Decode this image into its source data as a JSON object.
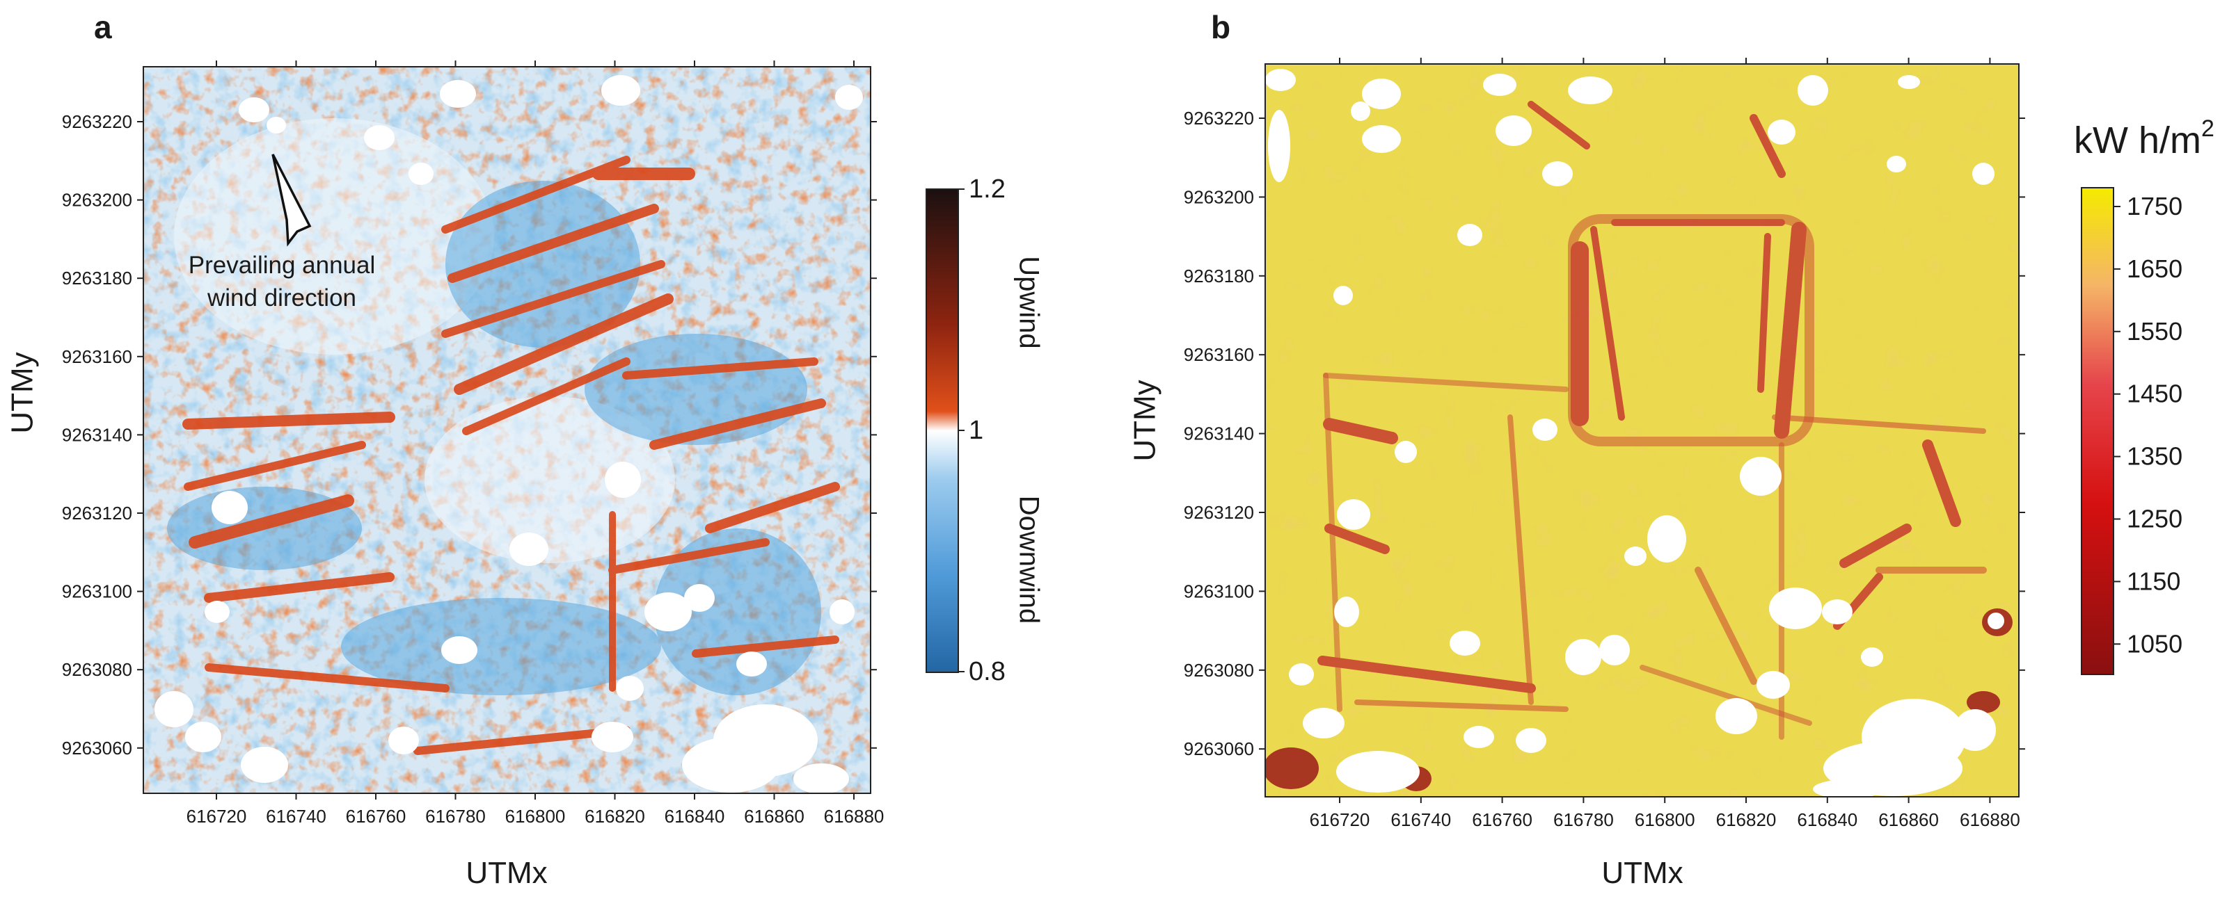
{
  "panel_a": {
    "label": "a",
    "x_ticks": [
      "616720",
      "616740",
      "616760",
      "616780",
      "616800",
      "616820",
      "616840",
      "616860",
      "616880"
    ],
    "y_ticks": [
      "9263220",
      "9263200",
      "9263180",
      "9263160",
      "9263140",
      "9263120",
      "9263100",
      "9263080",
      "9263060"
    ],
    "x_axis_label": "UTMx",
    "y_axis_label": "UTMy",
    "annotation_line1": "Prevailing annual",
    "annotation_line2": "wind direction",
    "colorbar": {
      "max_label": "1.2",
      "mid_label": "1",
      "min_label": "0.8",
      "upper_label": "Upwind",
      "lower_label": "Downwind",
      "colors": [
        "#1b1010",
        "#c13a14",
        "#ffffff",
        "#5aa7de",
        "#2466a4"
      ]
    }
  },
  "panel_b": {
    "label": "b",
    "x_ticks": [
      "616720",
      "616740",
      "616760",
      "616780",
      "616800",
      "616820",
      "616840",
      "616860",
      "616880"
    ],
    "y_ticks": [
      "9263220",
      "9263200",
      "9263180",
      "9263160",
      "9263140",
      "9263120",
      "9263100",
      "9263080",
      "9263060"
    ],
    "x_axis_label": "UTMx",
    "y_axis_label": "UTMy",
    "colorbar": {
      "unit_base": "kW h/m",
      "unit_sup": "2",
      "ticks": [
        "1750",
        "1650",
        "1550",
        "1450",
        "1350",
        "1250",
        "1150",
        "1050"
      ],
      "colors": [
        "#f5ea00",
        "#f5b567",
        "#e6464c",
        "#d51010",
        "#8a1010"
      ]
    }
  },
  "colors": {
    "map_a_background": "#d7e8f4",
    "map_a_upwind": "#d9471a",
    "map_a_downwind": "#5aa7de",
    "map_b_background": "#ebd94f",
    "map_b_low": "#c2242b",
    "gap": "#ffffff"
  }
}
